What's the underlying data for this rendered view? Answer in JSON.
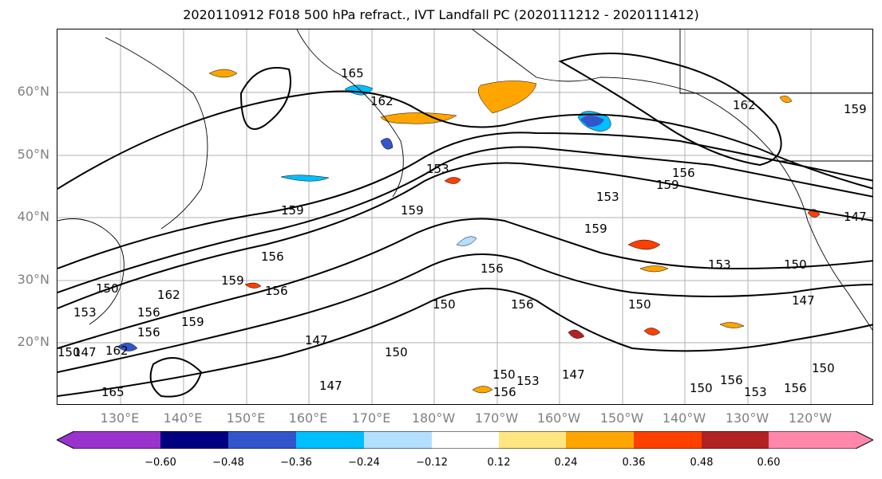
{
  "title": "2020110912 F018 500 hPa refract., IVT Landfall PC (2020111212 - 2020111412)",
  "lat_labels": [
    "60°N",
    "50°N",
    "40°N",
    "30°N",
    "20°N"
  ],
  "lon_labels": [
    "130°E",
    "140°E",
    "150°E",
    "160°E",
    "170°E",
    "180°W",
    "170°W",
    "160°W",
    "150°W",
    "140°W",
    "130°W",
    "120°W"
  ],
  "contour_labels": [
    "165",
    "162",
    "153",
    "156",
    "159",
    "159",
    "153",
    "159",
    "162",
    "159",
    "156",
    "159",
    "159",
    "156",
    "150",
    "153",
    "150",
    "156",
    "159",
    "162",
    "150",
    "147",
    "156",
    "150",
    "150",
    "147",
    "147",
    "150",
    "153",
    "156",
    "162",
    "165",
    "156",
    "147",
    "150",
    "156",
    "153",
    "156",
    "147",
    "153",
    "150",
    "156",
    "150",
    "147"
  ],
  "colorbar": {
    "colors": [
      "#9933cc",
      "#000080",
      "#3355cc",
      "#00bfff",
      "#b3e0ff",
      "#ffffff",
      "#ffe680",
      "#ffa500",
      "#ff4000",
      "#b22222",
      "#ff88aa",
      "#ff88aa"
    ],
    "tick_labels": [
      "−0.60",
      "−0.48",
      "−0.36",
      "−0.24",
      "−0.12",
      "0.12",
      "0.24",
      "0.36",
      "0.48",
      "0.60"
    ]
  }
}
